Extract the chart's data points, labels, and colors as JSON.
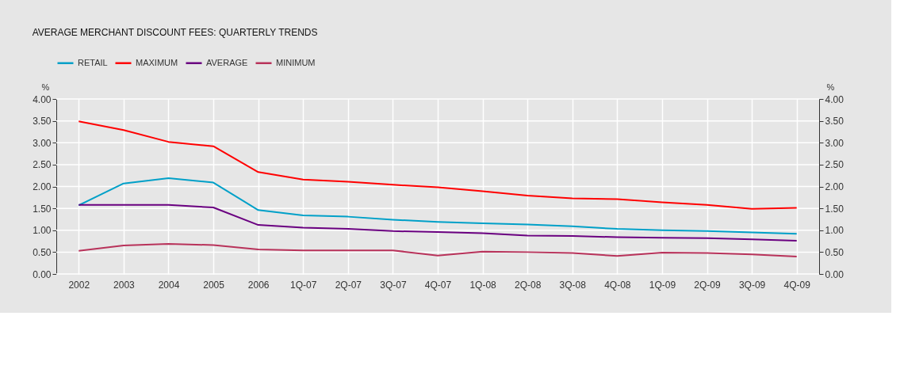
{
  "chart_data": {
    "type": "line",
    "title": "AVERAGE MERCHANT DISCOUNT FEES: QUARTERLY TRENDS",
    "ylabel": "%",
    "y2label": "%",
    "categories": [
      "2002",
      "2003",
      "2004",
      "2005",
      "2006",
      "1Q-07",
      "2Q-07",
      "3Q-07",
      "4Q-07",
      "1Q-08",
      "2Q-08",
      "3Q-08",
      "4Q-08",
      "1Q-09",
      "2Q-09",
      "3Q-09",
      "4Q-09"
    ],
    "series": [
      {
        "name": "RETAIL",
        "color": "#00a0c8",
        "values": [
          1.57,
          2.07,
          2.19,
          2.09,
          1.46,
          1.34,
          1.31,
          1.24,
          1.19,
          1.16,
          1.13,
          1.09,
          1.03,
          1.0,
          0.98,
          0.95,
          0.92
        ]
      },
      {
        "name": "MAXIMUM",
        "color": "#ff0000",
        "values": [
          3.49,
          3.29,
          3.02,
          2.92,
          2.33,
          2.16,
          2.11,
          2.04,
          1.98,
          1.89,
          1.79,
          1.73,
          1.71,
          1.64,
          1.58,
          1.49,
          1.51
        ]
      },
      {
        "name": "AVERAGE",
        "color": "#6a0080",
        "values": [
          1.58,
          1.58,
          1.58,
          1.52,
          1.12,
          1.06,
          1.03,
          0.98,
          0.96,
          0.93,
          0.88,
          0.87,
          0.84,
          0.83,
          0.82,
          0.79,
          0.76
        ]
      },
      {
        "name": "MINIMUM",
        "color": "#b8325a",
        "values": [
          0.53,
          0.65,
          0.69,
          0.66,
          0.56,
          0.54,
          0.54,
          0.54,
          0.42,
          0.51,
          0.5,
          0.48,
          0.41,
          0.49,
          0.48,
          0.45,
          0.4
        ]
      }
    ],
    "ylim": [
      0,
      4
    ],
    "yticks": [
      {
        "value": 0,
        "label": "0.00"
      },
      {
        "value": 0.5,
        "label": "0.50"
      },
      {
        "value": 1,
        "label": "1.00"
      },
      {
        "value": 1.5,
        "label": "1.50"
      },
      {
        "value": 2,
        "label": "2.00"
      },
      {
        "value": 2.5,
        "label": "2.50"
      },
      {
        "value": 3,
        "label": "3.00"
      },
      {
        "value": 3.5,
        "label": "3.50"
      },
      {
        "value": 4,
        "label": "4.00"
      }
    ],
    "y2lim": [
      0,
      4
    ],
    "y2ticks": [
      {
        "value": 0,
        "label": "0.00"
      },
      {
        "value": 0.5,
        "label": "0.50"
      },
      {
        "value": 1,
        "label": "1.00"
      },
      {
        "value": 1.5,
        "label": "1.50"
      },
      {
        "value": 2,
        "label": "2.00"
      },
      {
        "value": 2.5,
        "label": "2.50"
      },
      {
        "value": 3,
        "label": "3.00"
      },
      {
        "value": 3.5,
        "label": "3.50"
      },
      {
        "value": 4,
        "label": "4.00"
      }
    ],
    "grid": true,
    "legend": "top left",
    "marker": "none",
    "line_style": "solid"
  }
}
